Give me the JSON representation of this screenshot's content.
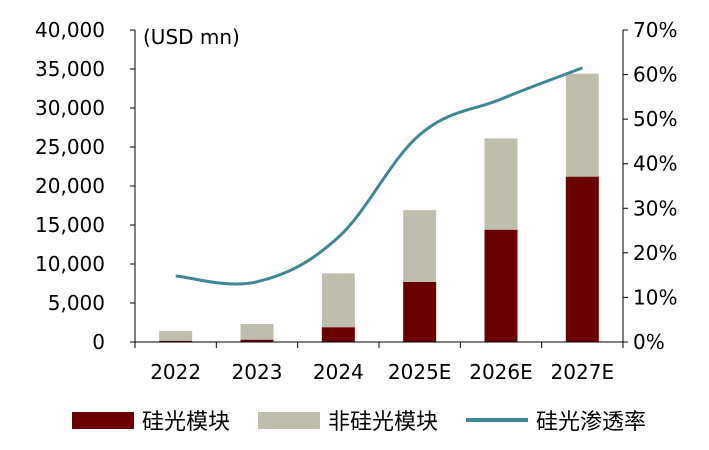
{
  "chart_data": {
    "type": "bar",
    "stacked": true,
    "unit_label": "(USD mn)",
    "categories": [
      "2022",
      "2023",
      "2024",
      "2025E",
      "2026E",
      "2027E"
    ],
    "series": [
      {
        "name": "硅光模块",
        "kind": "bar",
        "axis": "left",
        "color": "#6b0000",
        "values": [
          150,
          300,
          1900,
          7700,
          14400,
          21200
        ]
      },
      {
        "name": "非硅光模块",
        "kind": "bar",
        "axis": "left",
        "color": "#bfbdac",
        "values": [
          1250,
          2000,
          6900,
          9200,
          11700,
          13200
        ]
      },
      {
        "name": "硅光渗透率",
        "kind": "line",
        "axis": "right",
        "color": "#3f8694",
        "values": [
          0.148,
          0.135,
          0.235,
          0.465,
          0.545,
          0.615
        ]
      }
    ],
    "y_left": {
      "min": 0,
      "max": 40000,
      "step": 5000,
      "tick_labels": [
        "0",
        "5,000",
        "10,000",
        "15,000",
        "20,000",
        "25,000",
        "30,000",
        "35,000",
        "40,000"
      ]
    },
    "y_right": {
      "min": 0,
      "max": 0.7,
      "step": 0.1,
      "tick_labels": [
        "0%",
        "10%",
        "20%",
        "30%",
        "40%",
        "50%",
        "60%",
        "70%"
      ]
    },
    "grid": false,
    "legend_position": "bottom"
  }
}
